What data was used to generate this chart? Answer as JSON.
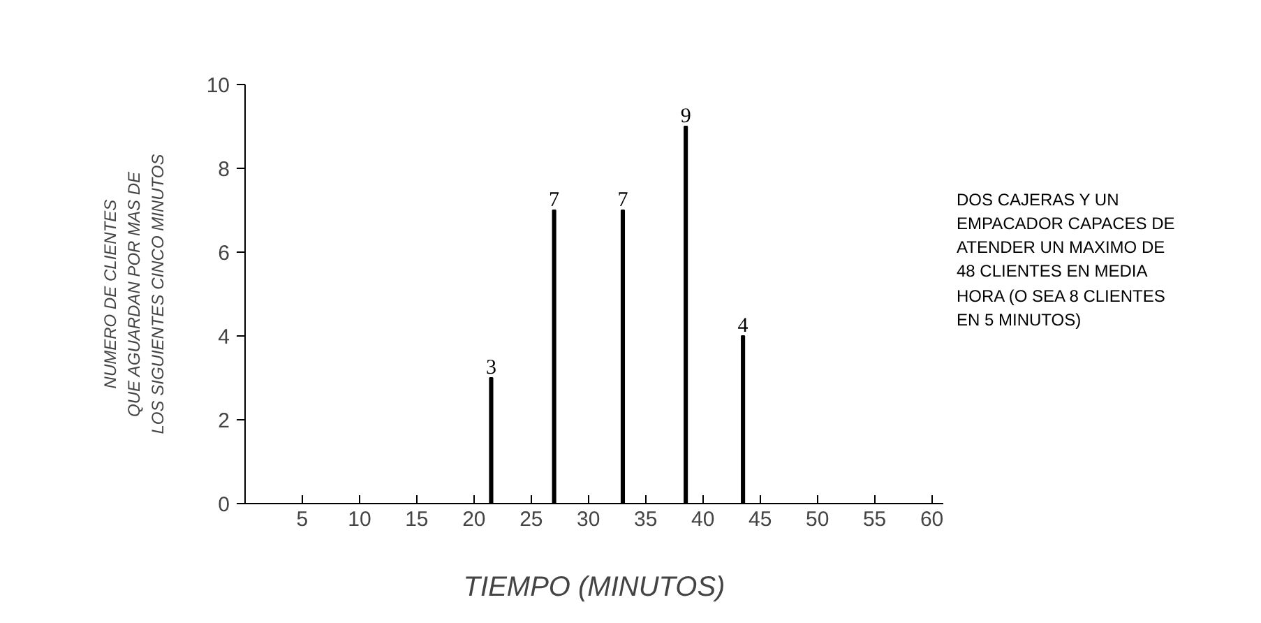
{
  "chart_data": {
    "type": "bar",
    "xlabel": "TIEMPO (MINUTOS)",
    "ylabel": "NUMERO DE CLIENTES\nQUE AGUARDAN POR MAS DE\nLOS SIGUIENTES CINCO MINUTOS",
    "x": [
      21.5,
      27,
      33,
      38.5,
      43.5
    ],
    "values": [
      3,
      7,
      7,
      9,
      4
    ],
    "color": "#000000",
    "data_labels": true,
    "xlim": [
      0,
      61
    ],
    "xticks": [
      5,
      10,
      15,
      20,
      25,
      30,
      35,
      40,
      45,
      50,
      55,
      60
    ],
    "ylim": [
      0,
      10
    ],
    "yticks": [
      0,
      2,
      4,
      6,
      8,
      10
    ],
    "grid": false,
    "annotations": [
      "DOS CAJERAS Y UN\nEMPACADOR CAPACES DE\nATENDER UN MAXIMO DE\n48 CLIENTES EN MEDIA\nHORA (O SEA 8 CLIENTES\nEN 5 MINUTOS)"
    ]
  }
}
